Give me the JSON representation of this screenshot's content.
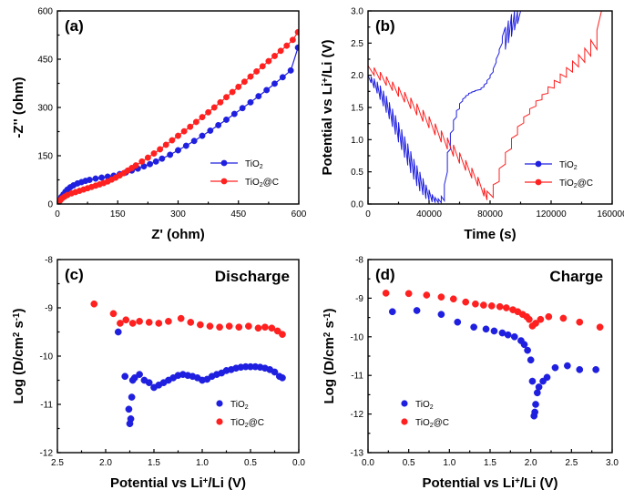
{
  "colors": {
    "tio2": "#1f1fe0",
    "tio2c": "#ff2020"
  },
  "chart_data": [
    {
      "id": "a",
      "type": "scatter",
      "panel_label": "(a)",
      "xlabel": "Z' (ohm)",
      "ylabel": "-Z'' (ohm)",
      "xlim": [
        0,
        600
      ],
      "ylim": [
        0,
        600
      ],
      "xticks": [
        0,
        150,
        300,
        450,
        600
      ],
      "yticks": [
        0,
        150,
        300,
        450,
        600
      ],
      "xtick_labels": [
        "0",
        "150",
        "300",
        "450",
        "600"
      ],
      "ytick_labels": [
        "0",
        "150",
        "300",
        "450",
        "600"
      ],
      "legend_position": "middle-right",
      "series": [
        {
          "name": "TiO2",
          "name_main": "TiO",
          "name_sub": "2",
          "name_tail": "",
          "color": "blue",
          "connected": true,
          "x": [
            2,
            5,
            10,
            15,
            20,
            25,
            32,
            40,
            50,
            60,
            70,
            80,
            95,
            110,
            125,
            140,
            155,
            170,
            185,
            200,
            215,
            230,
            245,
            260,
            280,
            300,
            320,
            340,
            360,
            380,
            400,
            420,
            440,
            460,
            480,
            500,
            520,
            540,
            560,
            580,
            598
          ],
          "y": [
            3,
            12,
            22,
            30,
            38,
            45,
            52,
            58,
            64,
            68,
            72,
            75,
            79,
            82,
            85,
            88,
            93,
            98,
            104,
            110,
            117,
            124,
            132,
            141,
            153,
            167,
            181,
            196,
            212,
            228,
            245,
            262,
            280,
            298,
            316,
            335,
            354,
            374,
            394,
            415,
            486
          ]
        },
        {
          "name": "TiO2@C",
          "name_main": "TiO",
          "name_sub": "2",
          "name_tail": "@C",
          "color": "red",
          "connected": true,
          "x": [
            2,
            5,
            8,
            12,
            18,
            25,
            35,
            45,
            55,
            65,
            75,
            85,
            95,
            105,
            115,
            125,
            135,
            145,
            155,
            165,
            175,
            185,
            195,
            210,
            225,
            240,
            255,
            270,
            285,
            300,
            315,
            330,
            345,
            360,
            375,
            390,
            405,
            420,
            435,
            450,
            465,
            480,
            495,
            510,
            525,
            540,
            555,
            570,
            585,
            598
          ],
          "y": [
            3,
            8,
            13,
            18,
            23,
            28,
            33,
            37,
            41,
            45,
            49,
            53,
            57,
            61,
            65,
            70,
            76,
            82,
            89,
            96,
            104,
            112,
            120,
            132,
            144,
            157,
            170,
            184,
            198,
            212,
            226,
            240,
            255,
            270,
            285,
            300,
            316,
            332,
            348,
            364,
            380,
            396,
            412,
            428,
            444,
            460,
            476,
            492,
            510,
            534
          ]
        }
      ]
    },
    {
      "id": "b",
      "type": "line",
      "panel_label": "(b)",
      "xlabel": "Time (s)",
      "ylabel": "Potential vs Li+/Li (V)",
      "ylabel_parts": [
        "Potential vs Li",
        "+",
        "/Li (V)"
      ],
      "xlim": [
        0,
        160000
      ],
      "ylim": [
        0,
        3
      ],
      "xticks": [
        0,
        40000,
        80000,
        120000,
        160000
      ],
      "yticks": [
        0,
        0.5,
        1.0,
        1.5,
        2.0,
        2.5,
        3.0
      ],
      "xtick_labels": [
        "0",
        "40000",
        "80000",
        "120000",
        "160000"
      ],
      "ytick_labels": [
        "0.0",
        "0.5",
        "1.0",
        "1.5",
        "2.0",
        "2.5",
        "3.0"
      ],
      "legend_position": "lower-right",
      "series": [
        {
          "name": "TiO2",
          "name_main": "TiO",
          "name_sub": "2",
          "name_tail": "",
          "color": "blue",
          "x": [
            0,
            2000,
            2000,
            4000,
            4000,
            6000,
            6000,
            8000,
            8000,
            10000,
            10000,
            12000,
            12000,
            14000,
            14000,
            16000,
            16000,
            18000,
            18000,
            20000,
            20000,
            22000,
            22000,
            24000,
            24000,
            26000,
            26000,
            28000,
            28000,
            30000,
            30000,
            32000,
            32000,
            34000,
            34000,
            36000,
            36000,
            38000,
            38000,
            40000,
            40000,
            42000,
            42000,
            44000,
            44000,
            46000,
            46000,
            48000,
            48000,
            50000,
            50000,
            52000,
            52000,
            54000,
            54000,
            56000,
            56000,
            58000,
            58000,
            60000,
            60000,
            62000,
            62000,
            64000,
            64000,
            66000,
            66000,
            68000,
            68000,
            70000,
            70000,
            72000,
            72000,
            74000,
            74000,
            76000,
            76000,
            78000,
            78000,
            80000,
            80000,
            82000,
            82000,
            84000,
            84000,
            86000,
            86000,
            88000,
            88000,
            90000,
            90000,
            92000,
            92000,
            94000,
            94000,
            96000,
            96000,
            98000,
            98000,
            100000
          ],
          "y": [
            2.0,
            1.88,
            1.98,
            1.8,
            1.95,
            1.72,
            1.9,
            1.62,
            1.84,
            1.52,
            1.76,
            1.42,
            1.68,
            1.32,
            1.58,
            1.2,
            1.48,
            1.08,
            1.38,
            0.96,
            1.27,
            0.84,
            1.16,
            0.72,
            1.05,
            0.6,
            0.94,
            0.48,
            0.82,
            0.38,
            0.7,
            0.28,
            0.6,
            0.2,
            0.5,
            0.14,
            0.4,
            0.08,
            0.3,
            0.05,
            0.22,
            0.03,
            0.15,
            0.02,
            0.1,
            0.02,
            0.08,
            0.02,
            0.12,
            0.05,
            0.3,
            0.5,
            0.8,
            0.85,
            1.1,
            1.15,
            1.3,
            1.35,
            1.45,
            1.48,
            1.56,
            1.6,
            1.63,
            1.66,
            1.68,
            1.7,
            1.72,
            1.73,
            1.74,
            1.75,
            1.76,
            1.77,
            1.77,
            1.78,
            1.8,
            1.82,
            1.85,
            1.88,
            1.92,
            1.96,
            2.0,
            2.05,
            2.1,
            2.2,
            2.25,
            2.35,
            2.4,
            2.5,
            2.6,
            2.75,
            2.4,
            2.85,
            2.5,
            2.95,
            2.6,
            3.0,
            2.7,
            3.0,
            2.8,
            3.0
          ]
        },
        {
          "name": "TiO2@C",
          "name_main": "TiO",
          "name_sub": "2",
          "name_tail": "@C",
          "color": "red",
          "x": [
            0,
            4000,
            4000,
            8000,
            8000,
            12000,
            12000,
            16000,
            16000,
            20000,
            20000,
            24000,
            24000,
            28000,
            28000,
            32000,
            32000,
            36000,
            36000,
            40000,
            40000,
            44000,
            44000,
            48000,
            48000,
            52000,
            52000,
            56000,
            56000,
            60000,
            60000,
            64000,
            64000,
            68000,
            68000,
            72000,
            72000,
            76000,
            76000,
            78000,
            78000,
            82000,
            82000,
            86000,
            86000,
            90000,
            90000,
            94000,
            94000,
            98000,
            98000,
            102000,
            102000,
            106000,
            106000,
            110000,
            110000,
            114000,
            114000,
            118000,
            118000,
            122000,
            122000,
            126000,
            126000,
            130000,
            130000,
            134000,
            134000,
            138000,
            138000,
            142000,
            142000,
            146000,
            146000,
            150000,
            150000,
            153000
          ],
          "y": [
            2.15,
            2.0,
            2.12,
            1.92,
            2.05,
            1.84,
            1.98,
            1.76,
            1.9,
            1.67,
            1.82,
            1.58,
            1.74,
            1.48,
            1.65,
            1.38,
            1.56,
            1.28,
            1.46,
            1.18,
            1.36,
            1.07,
            1.25,
            0.96,
            1.14,
            0.85,
            1.03,
            0.74,
            0.92,
            0.63,
            0.8,
            0.52,
            0.68,
            0.4,
            0.56,
            0.28,
            0.42,
            0.12,
            0.25,
            0.06,
            0.2,
            0.1,
            0.3,
            0.35,
            0.55,
            0.62,
            0.8,
            0.86,
            1.02,
            1.08,
            1.2,
            1.26,
            1.35,
            1.4,
            1.48,
            1.52,
            1.6,
            1.62,
            1.7,
            1.72,
            1.82,
            1.8,
            1.92,
            1.88,
            2.02,
            1.97,
            2.12,
            2.05,
            2.22,
            2.13,
            2.32,
            2.2,
            2.42,
            2.3,
            2.55,
            2.4,
            2.7,
            3.0
          ]
        }
      ]
    },
    {
      "id": "c",
      "type": "scatter",
      "panel_label": "(c)",
      "title": "Discharge",
      "xlabel": "Potential vs Li+/Li (V)",
      "xlabel_parts": [
        "Potential vs Li",
        "+",
        "/Li (V)"
      ],
      "ylabel": "Log (D/cm2 s-1)",
      "ylabel_parts": [
        "Log (D/cm",
        "2",
        " s",
        "-1",
        ")"
      ],
      "xlim": [
        2.5,
        0.0
      ],
      "ylim": [
        -12,
        -8
      ],
      "xticks": [
        2.5,
        2.0,
        1.5,
        1.0,
        0.5,
        0.0
      ],
      "yticks": [
        -12,
        -11,
        -10,
        -9,
        -8
      ],
      "xtick_labels": [
        "2.5",
        "2.0",
        "1.5",
        "1.0",
        "0.5",
        "0.0"
      ],
      "ytick_labels": [
        "-12",
        "-11",
        "-10",
        "-9",
        "-8"
      ],
      "legend_position": "lower-right",
      "series": [
        {
          "name": "TiO2",
          "name_main": "TiO",
          "name_sub": "2",
          "name_tail": "",
          "color": "blue",
          "x": [
            1.87,
            1.8,
            1.76,
            1.75,
            1.74,
            1.73,
            1.72,
            1.7,
            1.65,
            1.6,
            1.55,
            1.5,
            1.45,
            1.4,
            1.35,
            1.3,
            1.25,
            1.2,
            1.15,
            1.1,
            1.05,
            1.0,
            0.95,
            0.9,
            0.85,
            0.8,
            0.75,
            0.7,
            0.65,
            0.6,
            0.55,
            0.5,
            0.45,
            0.4,
            0.35,
            0.3,
            0.25,
            0.2,
            0.17
          ],
          "y": [
            -9.5,
            -10.42,
            -11.1,
            -11.4,
            -11.3,
            -10.85,
            -10.5,
            -10.45,
            -10.38,
            -10.5,
            -10.55,
            -10.65,
            -10.6,
            -10.55,
            -10.5,
            -10.45,
            -10.4,
            -10.38,
            -10.4,
            -10.42,
            -10.45,
            -10.5,
            -10.48,
            -10.42,
            -10.38,
            -10.35,
            -10.3,
            -10.28,
            -10.25,
            -10.23,
            -10.22,
            -10.22,
            -10.22,
            -10.23,
            -10.25,
            -10.28,
            -10.33,
            -10.42,
            -10.45
          ]
        },
        {
          "name": "TiO2@C",
          "name_main": "TiO",
          "name_sub": "2",
          "name_tail": "@C",
          "color": "red",
          "x": [
            2.12,
            1.92,
            1.85,
            1.79,
            1.72,
            1.65,
            1.55,
            1.45,
            1.35,
            1.22,
            1.12,
            1.02,
            0.92,
            0.82,
            0.72,
            0.62,
            0.52,
            0.42,
            0.35,
            0.28,
            0.22,
            0.17
          ],
          "y": [
            -8.92,
            -9.12,
            -9.32,
            -9.25,
            -9.32,
            -9.28,
            -9.3,
            -9.32,
            -9.28,
            -9.22,
            -9.3,
            -9.35,
            -9.38,
            -9.4,
            -9.38,
            -9.4,
            -9.38,
            -9.42,
            -9.4,
            -9.42,
            -9.48,
            -9.55
          ]
        }
      ]
    },
    {
      "id": "d",
      "type": "scatter",
      "panel_label": "(d)",
      "title": "Charge",
      "xlabel": "Potential vs Li+/Li (V)",
      "xlabel_parts": [
        "Potential vs Li",
        "+",
        "/Li (V)"
      ],
      "ylabel": "Log (D/cm2 s-1)",
      "ylabel_parts": [
        "Log (D/cm",
        "2",
        " s",
        "-1",
        ")"
      ],
      "xlim": [
        0.0,
        3.0
      ],
      "ylim": [
        -13,
        -8
      ],
      "xticks": [
        0.0,
        0.5,
        1.0,
        1.5,
        2.0,
        2.5,
        3.0
      ],
      "yticks": [
        -13,
        -12,
        -11,
        -10,
        -9,
        -8
      ],
      "xtick_labels": [
        "0.0",
        "0.5",
        "1.0",
        "1.5",
        "2.0",
        "2.5",
        "3.0"
      ],
      "ytick_labels": [
        "-13",
        "-12",
        "-11",
        "-10",
        "-9",
        "-8"
      ],
      "legend_position": "lower-left",
      "series": [
        {
          "name": "TiO2",
          "name_main": "TiO",
          "name_sub": "2",
          "name_tail": "",
          "color": "blue",
          "x": [
            0.3,
            0.6,
            0.9,
            1.1,
            1.3,
            1.45,
            1.55,
            1.65,
            1.72,
            1.8,
            1.88,
            1.92,
            1.96,
            2.0,
            2.02,
            2.04,
            2.05,
            2.06,
            2.08,
            2.1,
            2.15,
            2.2,
            2.3,
            2.45,
            2.6,
            2.8
          ],
          "y": [
            -9.35,
            -9.32,
            -9.42,
            -9.62,
            -9.75,
            -9.8,
            -9.85,
            -9.9,
            -9.95,
            -10.0,
            -10.1,
            -10.2,
            -10.35,
            -10.6,
            -11.15,
            -12.05,
            -11.95,
            -11.75,
            -11.45,
            -11.3,
            -11.15,
            -11.05,
            -10.8,
            -10.75,
            -10.85,
            -10.85
          ]
        },
        {
          "name": "TiO2@C",
          "name_main": "TiO",
          "name_sub": "2",
          "name_tail": "@C",
          "color": "red",
          "x": [
            0.22,
            0.5,
            0.72,
            0.9,
            1.05,
            1.2,
            1.32,
            1.42,
            1.52,
            1.62,
            1.7,
            1.78,
            1.84,
            1.9,
            1.95,
            1.98,
            2.02,
            2.06,
            2.12,
            2.22,
            2.4,
            2.6,
            2.85
          ],
          "y": [
            -8.87,
            -8.88,
            -8.92,
            -8.97,
            -9.02,
            -9.1,
            -9.15,
            -9.18,
            -9.2,
            -9.22,
            -9.25,
            -9.3,
            -9.35,
            -9.42,
            -9.48,
            -9.55,
            -9.72,
            -9.65,
            -9.55,
            -9.48,
            -9.52,
            -9.62,
            -9.75
          ]
        }
      ]
    }
  ]
}
